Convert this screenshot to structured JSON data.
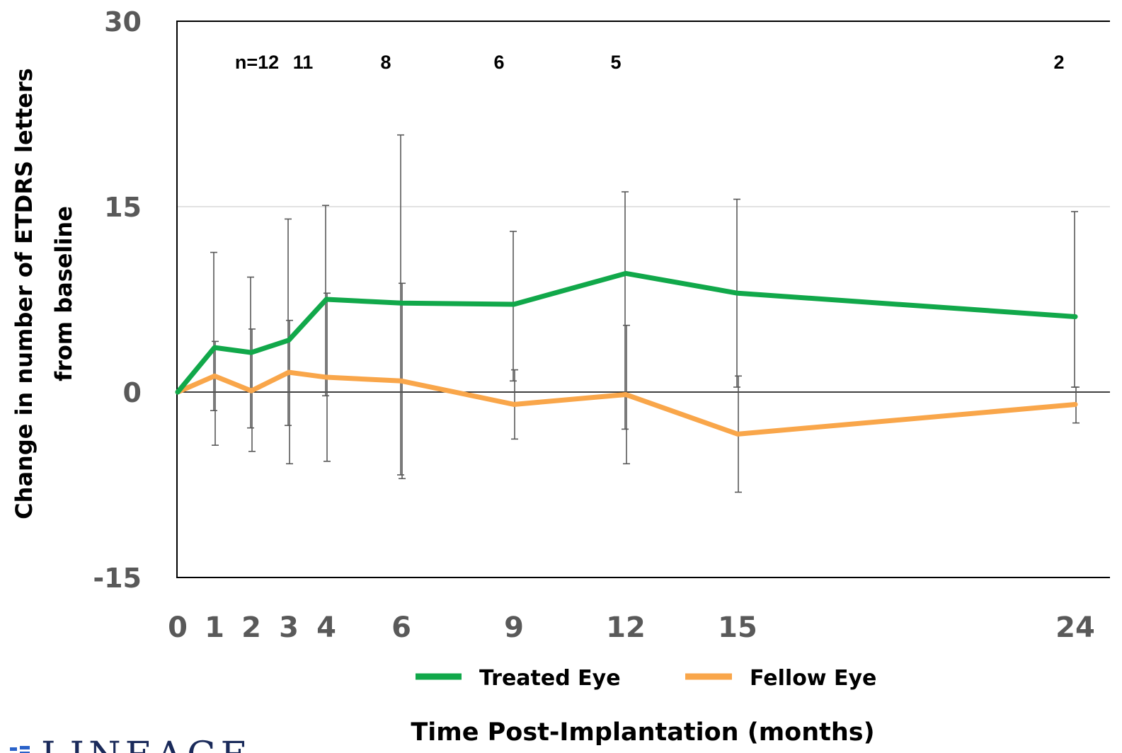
{
  "chart_data": {
    "type": "line",
    "ylabel": [
      "Change in number of ETDRS letters",
      "from baseline"
    ],
    "xlabel": "Time Post-Implantation (months)",
    "x": [
      0,
      1,
      2,
      3,
      4,
      6,
      9,
      12,
      15,
      24
    ],
    "ylim": [
      -15,
      30
    ],
    "yticks": [
      -15,
      0,
      15,
      30
    ],
    "sample_sizes": [
      {
        "x": 1,
        "label": "n=12"
      },
      {
        "x": 3,
        "label": "11"
      },
      {
        "x": 6,
        "label": "8"
      },
      {
        "x": 9,
        "label": "6"
      },
      {
        "x": 12,
        "label": "5"
      },
      {
        "x": 24,
        "label": "2"
      }
    ],
    "series": [
      {
        "name": "Treated Eye",
        "color": "#11a84a",
        "values": [
          0,
          3.6,
          3.2,
          4.2,
          7.5,
          7.2,
          7.1,
          9.6,
          8.0,
          6.1
        ],
        "err_low": [
          null,
          -1.5,
          -2.9,
          -2.7,
          -0.3,
          -6.7,
          0.9,
          -3.0,
          0.4,
          0.4
        ],
        "err_high": [
          null,
          11.3,
          9.3,
          14.0,
          15.1,
          20.8,
          13.0,
          16.2,
          15.6,
          14.6
        ]
      },
      {
        "name": "Fellow Eye",
        "color": "#f9a64a",
        "values": [
          0,
          1.3,
          0.1,
          1.6,
          1.2,
          0.9,
          -1.0,
          -0.2,
          -3.4,
          -1.0
        ],
        "err_low": [
          null,
          -4.3,
          -4.8,
          -5.8,
          -5.6,
          -7.0,
          -3.8,
          -5.8,
          -8.1,
          -2.5
        ],
        "err_high": [
          null,
          4.1,
          5.1,
          5.8,
          8.0,
          8.8,
          1.8,
          5.4,
          1.3,
          0.4
        ]
      }
    ],
    "legend": "bottom"
  },
  "logo": {
    "text": "LINEAGE",
    "mark_color": "#2a62c9"
  }
}
